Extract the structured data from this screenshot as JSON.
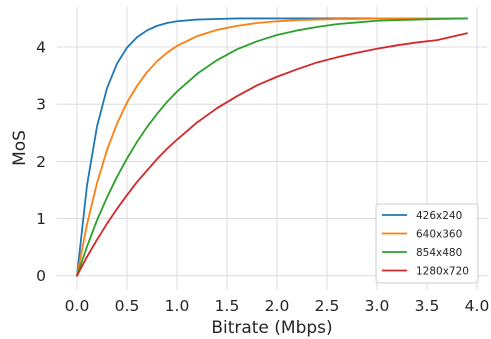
{
  "chart_data": {
    "type": "line",
    "title": "",
    "xlabel": "Bitrate (Mbps)",
    "ylabel": "MoS",
    "xlim": [
      -0.2,
      4.1
    ],
    "ylim": [
      -0.25,
      4.7
    ],
    "xticks": [
      "0.0",
      "0.5",
      "1.0",
      "1.5",
      "2.0",
      "2.5",
      "3.0",
      "3.5",
      "4.0"
    ],
    "yticks": [
      "0",
      "1",
      "2",
      "3",
      "4"
    ],
    "grid": true,
    "legend_position": "lower-right",
    "x": [
      0.0,
      0.1,
      0.2,
      0.3,
      0.4,
      0.5,
      0.6,
      0.7,
      0.8,
      0.9,
      1.0,
      1.2,
      1.4,
      1.6,
      1.8,
      2.0,
      2.2,
      2.4,
      2.6,
      2.8,
      3.0,
      3.2,
      3.4,
      3.6,
      3.9
    ],
    "series": [
      {
        "name": "426x240",
        "color": "#1f77b4",
        "values": [
          0.0,
          1.58,
          2.61,
          3.28,
          3.71,
          3.99,
          4.17,
          4.29,
          4.37,
          4.42,
          4.45,
          4.48,
          4.49,
          4.5,
          4.5,
          4.5,
          4.5,
          4.5,
          4.5,
          4.5,
          4.5,
          4.5,
          4.5,
          4.5,
          4.5
        ]
      },
      {
        "name": "640x360",
        "color": "#ff7f0e",
        "values": [
          0.0,
          0.9,
          1.62,
          2.2,
          2.66,
          3.03,
          3.32,
          3.56,
          3.75,
          3.9,
          4.02,
          4.19,
          4.3,
          4.37,
          4.42,
          4.45,
          4.47,
          4.48,
          4.49,
          4.49,
          4.5,
          4.5,
          4.5,
          4.5,
          4.5
        ]
      },
      {
        "name": "854x480",
        "color": "#2ca02c",
        "values": [
          0.0,
          0.51,
          0.97,
          1.37,
          1.73,
          2.05,
          2.34,
          2.6,
          2.83,
          3.04,
          3.22,
          3.53,
          3.77,
          3.96,
          4.1,
          4.21,
          4.29,
          4.35,
          4.4,
          4.43,
          4.46,
          4.47,
          4.48,
          4.49,
          4.5
        ]
      },
      {
        "name": "1280x720",
        "color": "#d62728",
        "values": [
          0.0,
          0.33,
          0.63,
          0.91,
          1.17,
          1.41,
          1.64,
          1.84,
          2.04,
          2.22,
          2.38,
          2.68,
          2.93,
          3.14,
          3.33,
          3.48,
          3.61,
          3.73,
          3.82,
          3.9,
          3.97,
          4.03,
          4.08,
          4.12,
          4.24
        ]
      }
    ]
  }
}
